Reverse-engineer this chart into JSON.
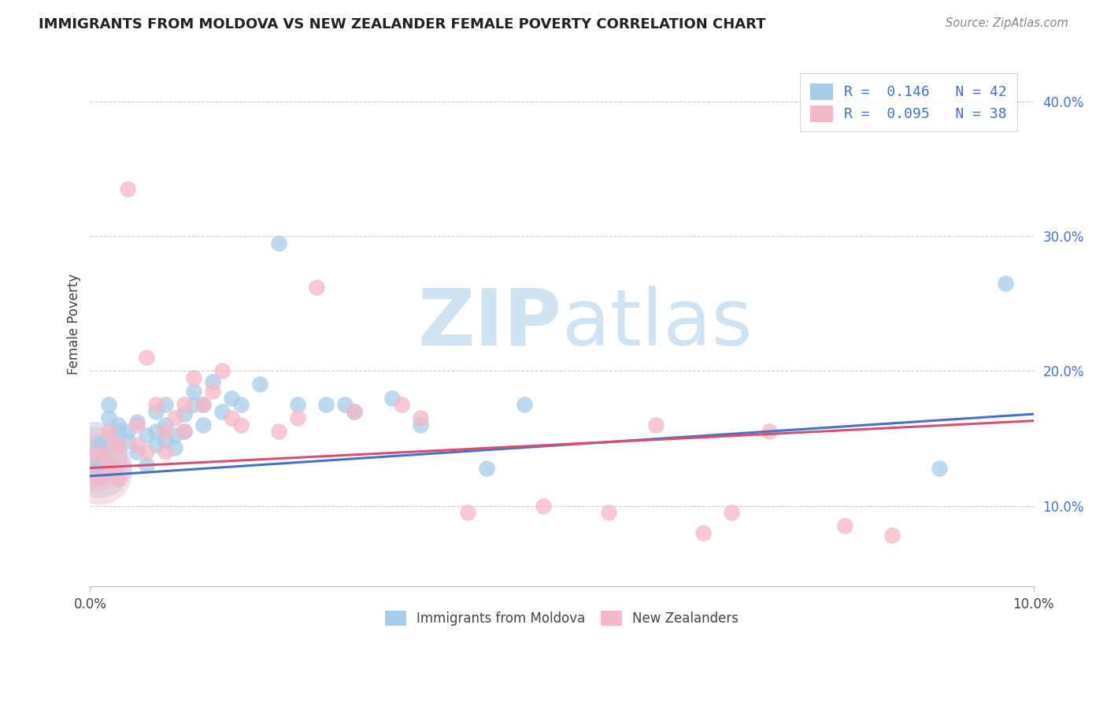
{
  "title": "IMMIGRANTS FROM MOLDOVA VS NEW ZEALANDER FEMALE POVERTY CORRELATION CHART",
  "source": "Source: ZipAtlas.com",
  "ylabel": "Female Poverty",
  "xlim": [
    0.0,
    0.1
  ],
  "ylim": [
    0.04,
    0.43
  ],
  "color_blue": "#a8cce8",
  "color_pink": "#f4b8c8",
  "line_blue": "#4472C4",
  "line_pink": "#d45070",
  "r1_text": "R =  0.146   N = 42",
  "r2_text": "R =  0.095   N = 38",
  "legend_blue": "Immigrants from Moldova",
  "legend_pink": "New Zealanders",
  "blue_x": [
    0.001,
    0.001,
    0.002,
    0.002,
    0.003,
    0.003,
    0.004,
    0.004,
    0.005,
    0.005,
    0.006,
    0.006,
    0.007,
    0.007,
    0.007,
    0.008,
    0.008,
    0.008,
    0.009,
    0.009,
    0.01,
    0.01,
    0.011,
    0.011,
    0.012,
    0.012,
    0.013,
    0.014,
    0.015,
    0.016,
    0.018,
    0.02,
    0.022,
    0.025,
    0.027,
    0.028,
    0.032,
    0.035,
    0.042,
    0.046,
    0.09,
    0.097
  ],
  "blue_y": [
    0.13,
    0.145,
    0.165,
    0.175,
    0.16,
    0.155,
    0.148,
    0.155,
    0.14,
    0.162,
    0.152,
    0.13,
    0.17,
    0.155,
    0.145,
    0.16,
    0.175,
    0.148,
    0.152,
    0.143,
    0.168,
    0.155,
    0.185,
    0.175,
    0.16,
    0.175,
    0.192,
    0.17,
    0.18,
    0.175,
    0.19,
    0.295,
    0.175,
    0.175,
    0.175,
    0.17,
    0.18,
    0.16,
    0.128,
    0.175,
    0.128,
    0.265
  ],
  "pink_x": [
    0.001,
    0.001,
    0.002,
    0.002,
    0.003,
    0.003,
    0.004,
    0.005,
    0.005,
    0.006,
    0.006,
    0.007,
    0.008,
    0.008,
    0.009,
    0.01,
    0.01,
    0.011,
    0.012,
    0.013,
    0.014,
    0.015,
    0.016,
    0.02,
    0.022,
    0.024,
    0.028,
    0.033,
    0.035,
    0.04,
    0.048,
    0.055,
    0.06,
    0.065,
    0.068,
    0.072,
    0.08,
    0.085
  ],
  "pink_y": [
    0.138,
    0.12,
    0.155,
    0.13,
    0.145,
    0.12,
    0.335,
    0.16,
    0.145,
    0.21,
    0.14,
    0.175,
    0.155,
    0.14,
    0.165,
    0.175,
    0.155,
    0.195,
    0.175,
    0.185,
    0.2,
    0.165,
    0.16,
    0.155,
    0.165,
    0.262,
    0.17,
    0.175,
    0.165,
    0.095,
    0.1,
    0.095,
    0.16,
    0.08,
    0.095,
    0.155,
    0.085,
    0.078
  ],
  "blue_line_x": [
    0.0,
    0.1
  ],
  "blue_line_y": [
    0.122,
    0.168
  ],
  "pink_line_x": [
    0.0,
    0.1
  ],
  "pink_line_y": [
    0.128,
    0.163
  ]
}
